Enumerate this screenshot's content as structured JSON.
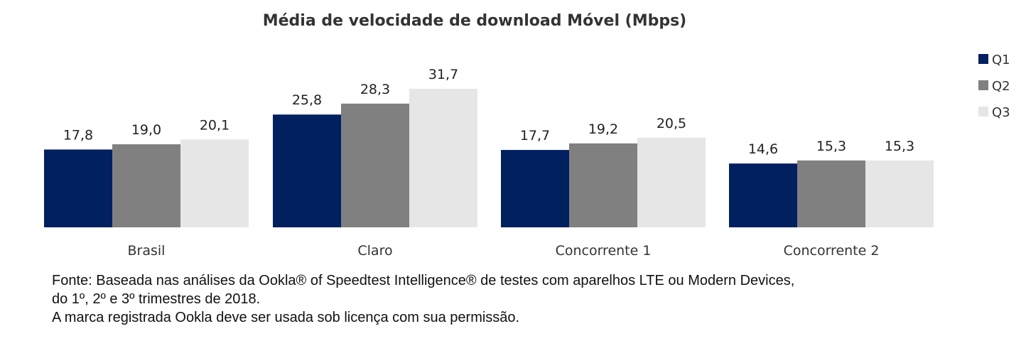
{
  "chart_data": {
    "type": "bar",
    "title": "Média de velocidade de download Móvel (Mbps)",
    "categories": [
      "Brasil",
      "Claro",
      "Concorrente 1",
      "Concorrente 2"
    ],
    "series": [
      {
        "name": "Q1",
        "color": "#002060",
        "values": [
          17.8,
          25.8,
          17.7,
          14.6
        ],
        "labels": [
          "17,8",
          "25,8",
          "17,7",
          "14,6"
        ]
      },
      {
        "name": "Q2",
        "color": "#808080",
        "values": [
          19.0,
          28.3,
          19.2,
          15.3
        ],
        "labels": [
          "19,0",
          "28,3",
          "19,2",
          "15,3"
        ]
      },
      {
        "name": "Q3",
        "color": "#E7E6E6",
        "values": [
          20.1,
          31.7,
          20.5,
          15.3
        ],
        "labels": [
          "20,1",
          "31,7",
          "20,5",
          "15,3"
        ]
      }
    ],
    "ylim": [
      0,
      32.5
    ],
    "xlabel": "",
    "ylabel": "",
    "grid": false,
    "legend": "top-right"
  },
  "footnote": {
    "line1": "Fonte: Baseada nas análises da Ookla® of Speedtest Intelligence®  de testes com aparelhos LTE ou Modern Devices,",
    "line2": "do 1º, 2º e 3º trimestres de 2018.",
    "line3": "A marca  registrada Ookla deve ser  usada sob licença com sua permissão."
  }
}
